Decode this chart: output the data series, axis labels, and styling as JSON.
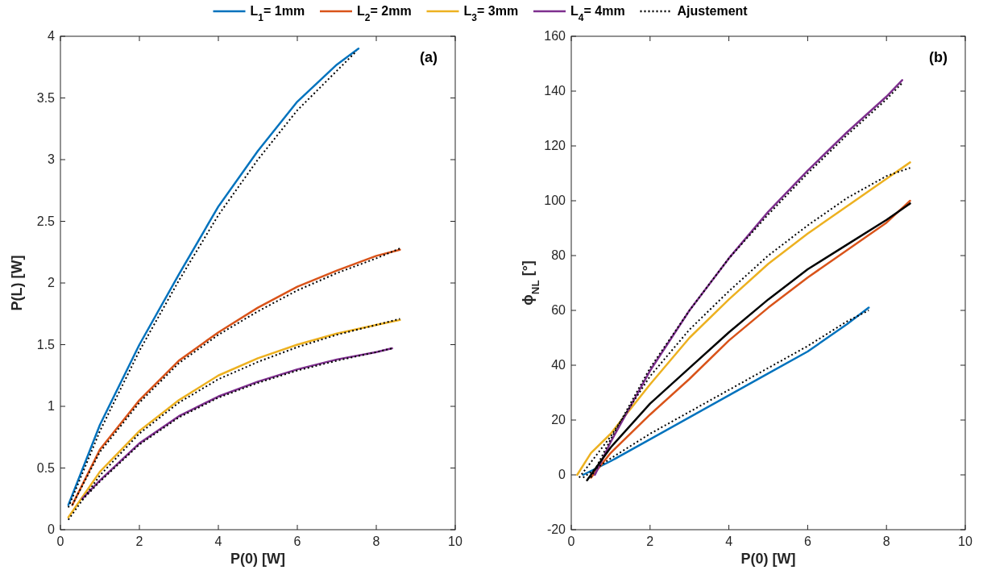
{
  "chart_data": [
    {
      "type": "line",
      "title": "(a)",
      "xlabel": "P(0) [W]",
      "ylabel": "P(L) [W]",
      "xlim": [
        0,
        10
      ],
      "xticks": [
        0,
        2,
        4,
        6,
        8,
        10
      ],
      "ylim": [
        0,
        4
      ],
      "yticks": [
        0,
        0.5,
        1,
        1.5,
        2,
        2.5,
        3,
        3.5,
        4
      ],
      "legend": "top",
      "grid": false,
      "series": [
        {
          "name": "L$_{1}$= 1mm",
          "color": "#0072bd",
          "line_style": "solid",
          "x": [
            0.2,
            1,
            2,
            3,
            4,
            5,
            6,
            7,
            7.55
          ],
          "values": [
            0.2,
            0.85,
            1.5,
            2.07,
            2.62,
            3.07,
            3.47,
            3.77,
            3.9
          ]
        },
        {
          "name": "L$_{2}$= 2mm",
          "color": "#d95319",
          "line_style": "solid",
          "x": [
            0.3,
            1,
            2,
            3,
            4,
            5,
            6,
            7,
            8,
            8.6
          ],
          "values": [
            0.2,
            0.65,
            1.05,
            1.37,
            1.6,
            1.8,
            1.97,
            2.1,
            2.22,
            2.27
          ]
        },
        {
          "name": "L$_{3}$= 3mm",
          "color": "#edb120",
          "line_style": "solid",
          "x": [
            0.2,
            1,
            2,
            3,
            4,
            5,
            6,
            7,
            8,
            8.6
          ],
          "values": [
            0.1,
            0.47,
            0.8,
            1.05,
            1.25,
            1.39,
            1.5,
            1.59,
            1.66,
            1.7
          ]
        },
        {
          "name": "L$_{4}$= 4mm",
          "color": "#7e2f8e",
          "line_style": "solid",
          "x": [
            0.55,
            1,
            2,
            3,
            4,
            5,
            6,
            7,
            8,
            8.4
          ],
          "values": [
            0.25,
            0.4,
            0.7,
            0.92,
            1.08,
            1.2,
            1.3,
            1.38,
            1.44,
            1.47
          ]
        },
        {
          "name": "Ajustement",
          "color": "#000000",
          "line_style": "dotted",
          "x": [
            0.2,
            1,
            2,
            3,
            4,
            5,
            6,
            7,
            7.5
          ],
          "values": [
            0.18,
            0.8,
            1.45,
            2.02,
            2.55,
            3.0,
            3.4,
            3.72,
            3.88
          ]
        },
        {
          "color": "#000000",
          "line_style": "dotted",
          "x": [
            0.3,
            1,
            2,
            3,
            4,
            5,
            6,
            7,
            8,
            8.6
          ],
          "values": [
            0.2,
            0.63,
            1.03,
            1.35,
            1.58,
            1.77,
            1.94,
            2.08,
            2.2,
            2.28
          ]
        },
        {
          "color": "#000000",
          "line_style": "dotted",
          "x": [
            0.2,
            1,
            2,
            3,
            4,
            5,
            6,
            7,
            8,
            8.6
          ],
          "values": [
            0.08,
            0.44,
            0.78,
            1.03,
            1.22,
            1.36,
            1.48,
            1.58,
            1.66,
            1.71
          ]
        },
        {
          "color": "#000000",
          "line_style": "dotted",
          "x": [
            0.55,
            1,
            2,
            3,
            4,
            5,
            6,
            7,
            8,
            8.4
          ],
          "values": [
            0.24,
            0.39,
            0.69,
            0.91,
            1.07,
            1.19,
            1.29,
            1.37,
            1.44,
            1.47
          ]
        }
      ]
    },
    {
      "type": "line",
      "title": "(b)",
      "xlabel": "P(0) [W]",
      "ylabel": "ϕ$_{NL}$ [°]",
      "xlim": [
        0,
        10
      ],
      "xticks": [
        0,
        2,
        4,
        6,
        8,
        10
      ],
      "ylim": [
        -20,
        160
      ],
      "yticks": [
        -20,
        0,
        20,
        40,
        60,
        80,
        100,
        120,
        140,
        160
      ],
      "grid": false,
      "series": [
        {
          "color": "#0072bd",
          "line_style": "solid",
          "x": [
            0.3,
            1,
            2,
            3,
            4,
            5,
            6,
            7,
            7.55
          ],
          "values": [
            0,
            5,
            13,
            21,
            29,
            37,
            45,
            55,
            61
          ]
        },
        {
          "color": "#d95319",
          "line_style": "solid",
          "x": [
            0.5,
            1,
            2,
            3,
            4,
            5,
            6,
            7,
            8,
            8.6
          ],
          "values": [
            -1,
            8,
            22,
            35,
            49,
            61,
            72,
            82,
            92,
            100
          ]
        },
        {
          "color": "#edb120",
          "line_style": "solid",
          "x": [
            0.15,
            0.5,
            1,
            2,
            3,
            4,
            5,
            6,
            7,
            8,
            8.6
          ],
          "values": [
            0,
            8,
            15,
            33,
            50,
            64,
            77,
            88,
            98,
            108,
            114
          ]
        },
        {
          "color": "#7e2f8e",
          "line_style": "solid",
          "x": [
            0.6,
            1,
            2,
            3,
            4,
            5,
            6,
            7,
            8,
            8.4
          ],
          "values": [
            0,
            12,
            38,
            60,
            79,
            96,
            111,
            125,
            138,
            144
          ]
        },
        {
          "color": "#000000",
          "line_style": "dotted",
          "x": [
            0.3,
            1,
            2,
            3,
            4,
            5,
            6,
            7,
            7.55
          ],
          "values": [
            -1,
            6,
            15,
            23,
            31,
            39,
            47,
            56,
            60
          ]
        },
        {
          "color": "#000000",
          "line_style": "solid",
          "x": [
            0.4,
            1,
            2,
            3,
            4,
            5,
            6,
            7,
            8,
            8.6
          ],
          "values": [
            -2,
            10,
            26,
            39,
            52,
            64,
            75,
            84,
            93,
            99
          ]
        },
        {
          "color": "#000000",
          "line_style": "dotted",
          "x": [
            0.2,
            1,
            2,
            3,
            4,
            5,
            6,
            7,
            8,
            8.6
          ],
          "values": [
            -1,
            14,
            36,
            53,
            67,
            80,
            91,
            101,
            109,
            112
          ]
        },
        {
          "color": "#000000",
          "line_style": "dotted",
          "x": [
            0.5,
            1,
            2,
            3,
            4,
            5,
            6,
            7,
            8,
            8.4
          ],
          "values": [
            -1,
            13,
            39,
            60,
            79,
            95,
            110,
            124,
            137,
            143
          ]
        }
      ]
    }
  ]
}
